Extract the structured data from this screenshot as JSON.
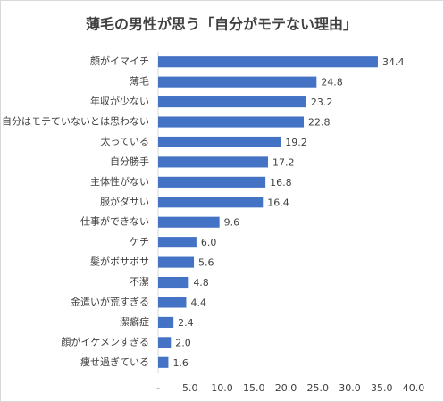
{
  "chart_data": {
    "type": "bar",
    "orientation": "horizontal",
    "title": "薄毛の男性が思う「自分がモテない理由」",
    "categories": [
      "顔がイマイチ",
      "薄毛",
      "年収が少ない",
      "自分はモテていないとは思わない",
      "太っている",
      "自分勝手",
      "主体性がない",
      "服がダサい",
      "仕事ができない",
      "ケチ",
      "髪がボサボサ",
      "不潔",
      "金遣いが荒すぎる",
      "潔癖症",
      "顔がイケメンすぎる",
      "痩せ過ぎている"
    ],
    "values": [
      34.4,
      24.8,
      23.2,
      22.8,
      19.2,
      17.2,
      16.8,
      16.4,
      9.6,
      6,
      5.6,
      4.8,
      4.4,
      2.4,
      2,
      1.6
    ],
    "value_labels": [
      "34.4",
      "24.8",
      "23.2",
      "22.8",
      "19.2",
      "17.2",
      "16.8",
      "16.4",
      "9.6",
      "6.0",
      "5.6",
      "4.8",
      "4.4",
      "2.4",
      "2.0",
      "1.6"
    ],
    "color": "#4472c4",
    "xlim": [
      0,
      40
    ],
    "xticks": [
      {
        "value": 0,
        "label": "-"
      },
      {
        "value": 5,
        "label": "5.0"
      },
      {
        "value": 10,
        "label": "10.0"
      },
      {
        "value": 15,
        "label": "15.0"
      },
      {
        "value": 20,
        "label": "20.0"
      },
      {
        "value": 25,
        "label": "25.0"
      },
      {
        "value": 30,
        "label": "30.0"
      },
      {
        "value": 35,
        "label": "35.0"
      },
      {
        "value": 40,
        "label": "40.0"
      }
    ]
  }
}
